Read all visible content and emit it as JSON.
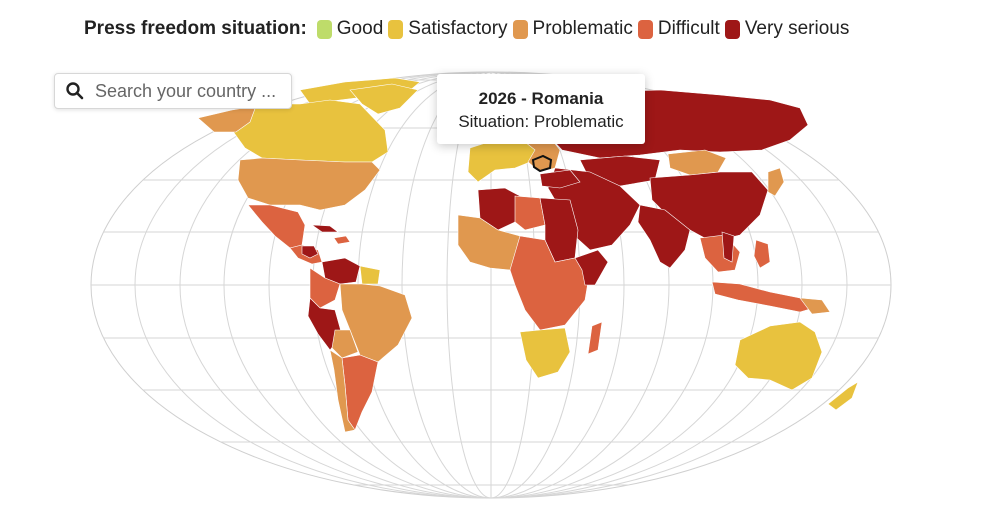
{
  "legend": {
    "title": "Press freedom situation:",
    "items": [
      {
        "label": "Good",
        "color": "#bedc6a"
      },
      {
        "label": "Satisfactory",
        "color": "#e8c23e"
      },
      {
        "label": "Problematic",
        "color": "#e0984f"
      },
      {
        "label": "Difficult",
        "color": "#dc6340"
      },
      {
        "label": "Very serious",
        "color": "#9e1717"
      }
    ]
  },
  "search": {
    "placeholder": "Search your country ...",
    "icon": "search-icon"
  },
  "tooltip": {
    "title": "2026 - Romania",
    "situation": "Situation: Problematic"
  },
  "map": {
    "selected_country": "Romania"
  }
}
